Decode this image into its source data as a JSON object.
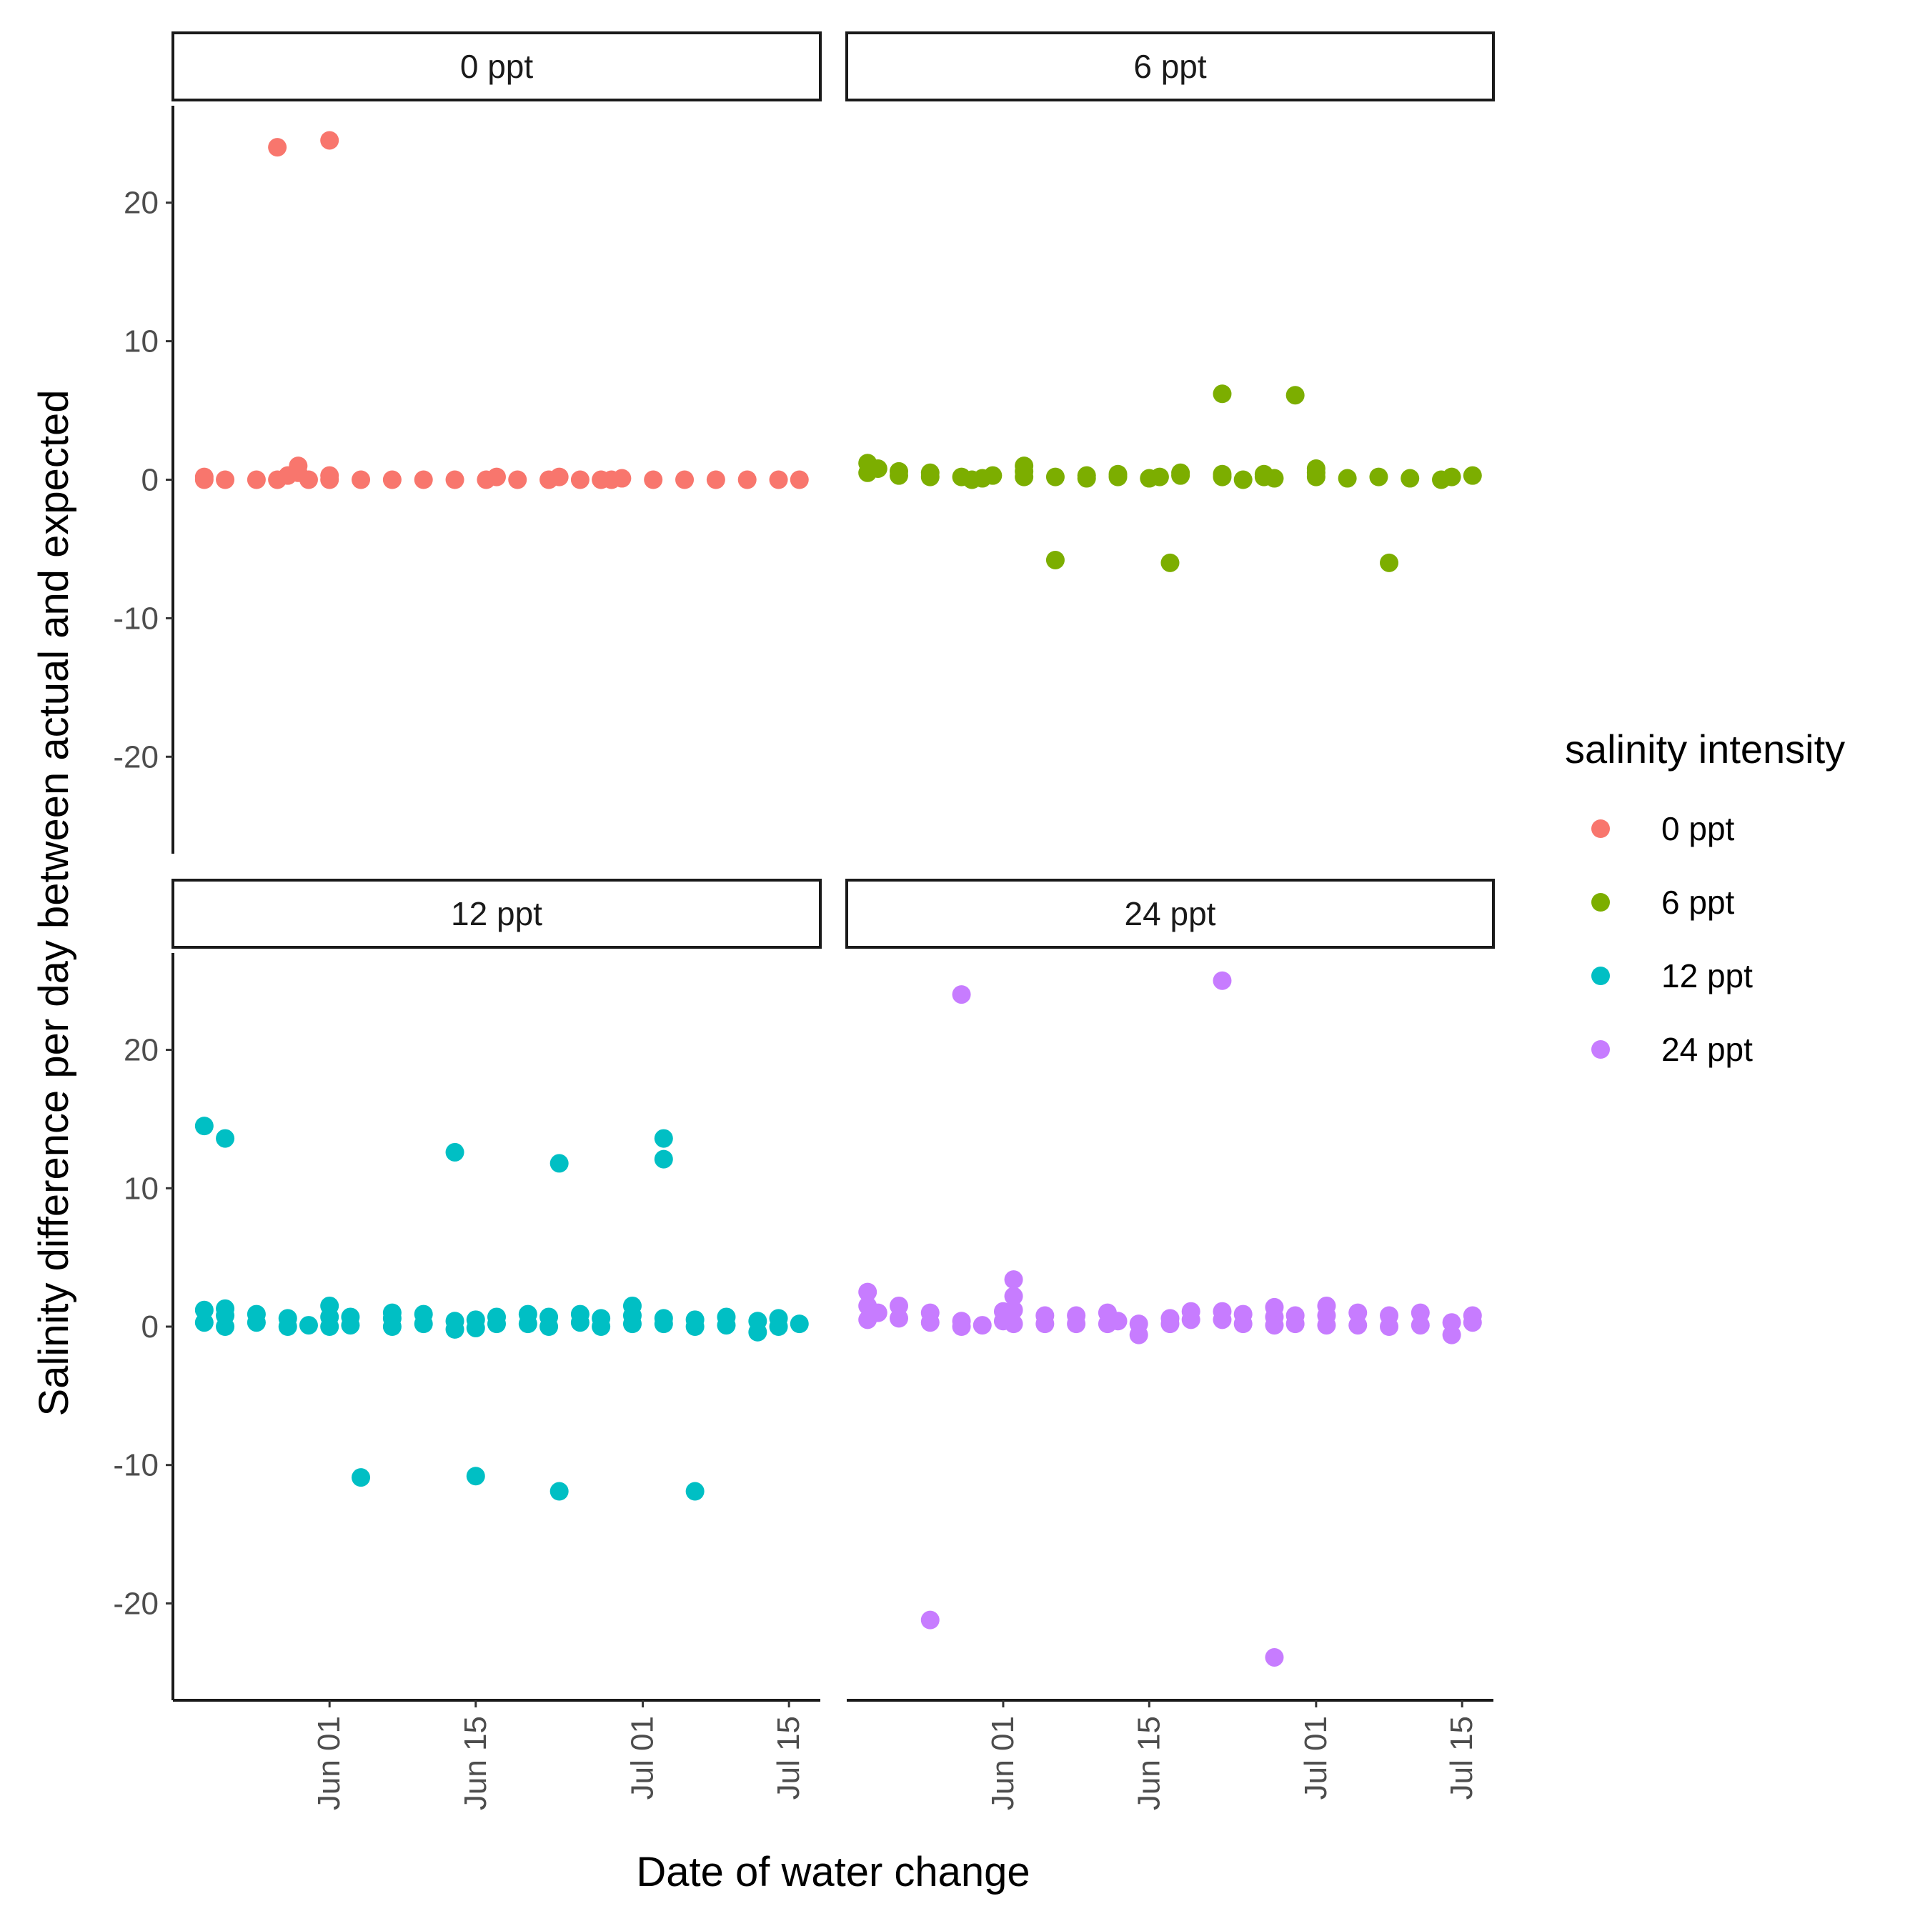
{
  "chart_data": {
    "type": "scatter",
    "facet_layout": "2x2",
    "shared_x_axis": true,
    "xlabel": "Date of water change",
    "ylabel": "Salinity difference per day between actual and expected",
    "x_unit": "day offset from May 15",
    "xlim": [
      2,
      64
    ],
    "x_ticks": [
      {
        "value": 17,
        "label": "Jun 01"
      },
      {
        "value": 31,
        "label": "Jun 15"
      },
      {
        "value": 47,
        "label": "Jul 01"
      },
      {
        "value": 61,
        "label": "Jul 15"
      }
    ],
    "ylim": [
      -27,
      27
    ],
    "y_ticks": [
      -20,
      -10,
      0,
      10,
      20
    ],
    "grid": false,
    "legend": {
      "title": "salinity intensity",
      "position": "right",
      "entries": [
        {
          "label": "0 ppt",
          "color": "#F8766D"
        },
        {
          "label": "6 ppt",
          "color": "#7CAE00"
        },
        {
          "label": "12 ppt",
          "color": "#00BFC4"
        },
        {
          "label": "24 ppt",
          "color": "#C77CFF"
        }
      ]
    },
    "series": [
      {
        "name": "0 ppt",
        "panel_title": "0 ppt",
        "color": "#F8766D",
        "points": [
          [
            5,
            0
          ],
          [
            5,
            0.2
          ],
          [
            7,
            0
          ],
          [
            10,
            0
          ],
          [
            12,
            0
          ],
          [
            13,
            0.3
          ],
          [
            14,
            0.5
          ],
          [
            14,
            1
          ],
          [
            15,
            0
          ],
          [
            17,
            0
          ],
          [
            17,
            0.3
          ],
          [
            20,
            0
          ],
          [
            23,
            0
          ],
          [
            26,
            0
          ],
          [
            29,
            0
          ],
          [
            32,
            0
          ],
          [
            33,
            0.2
          ],
          [
            35,
            0
          ],
          [
            38,
            0
          ],
          [
            39,
            0.2
          ],
          [
            41,
            0
          ],
          [
            43,
            0
          ],
          [
            44,
            0
          ],
          [
            45,
            0.1
          ],
          [
            48,
            0
          ],
          [
            51,
            0
          ],
          [
            54,
            0
          ],
          [
            57,
            0
          ],
          [
            60,
            0
          ],
          [
            62,
            0
          ],
          [
            12,
            24
          ],
          [
            17,
            24.5
          ]
        ]
      },
      {
        "name": "6 ppt",
        "panel_title": "6 ppt",
        "color": "#7CAE00",
        "points": [
          [
            4,
            0.5
          ],
          [
            4,
            1.2
          ],
          [
            5,
            0.8
          ],
          [
            7,
            0.3
          ],
          [
            7,
            0.6
          ],
          [
            10,
            0.2
          ],
          [
            10,
            0.5
          ],
          [
            13,
            0.2
          ],
          [
            14,
            0
          ],
          [
            15,
            0.1
          ],
          [
            16,
            0.3
          ],
          [
            19,
            0.2
          ],
          [
            19,
            0.6
          ],
          [
            19,
            1
          ],
          [
            22,
            0.2
          ],
          [
            25,
            0.1
          ],
          [
            25,
            0.3
          ],
          [
            28,
            0.2
          ],
          [
            28,
            0.4
          ],
          [
            31,
            0.1
          ],
          [
            32,
            0.2
          ],
          [
            34,
            0.3
          ],
          [
            34,
            0.5
          ],
          [
            38,
            0.2
          ],
          [
            38,
            0.4
          ],
          [
            40,
            0
          ],
          [
            42,
            0.2
          ],
          [
            42,
            0.4
          ],
          [
            43,
            0.1
          ],
          [
            47,
            0.2
          ],
          [
            47,
            0.5
          ],
          [
            47,
            0.8
          ],
          [
            50,
            0.1
          ],
          [
            53,
            0.2
          ],
          [
            56,
            0.1
          ],
          [
            59,
            0
          ],
          [
            60,
            0.2
          ],
          [
            62,
            0.3
          ],
          [
            38,
            6.2
          ],
          [
            45,
            6.1
          ],
          [
            22,
            -5.8
          ],
          [
            33,
            -6
          ],
          [
            54,
            -6
          ]
        ]
      },
      {
        "name": "12 ppt",
        "panel_title": "12 ppt",
        "color": "#00BFC4",
        "points": [
          [
            5,
            0.3
          ],
          [
            5,
            1.2
          ],
          [
            7,
            0
          ],
          [
            7,
            0.8
          ],
          [
            7,
            1.3
          ],
          [
            10,
            0.3
          ],
          [
            10,
            0.9
          ],
          [
            13,
            0
          ],
          [
            13,
            0.6
          ],
          [
            15,
            0.1
          ],
          [
            17,
            0
          ],
          [
            17,
            0.7
          ],
          [
            17,
            1.5
          ],
          [
            19,
            0.1
          ],
          [
            19,
            0.7
          ],
          [
            23,
            0
          ],
          [
            23,
            0.6
          ],
          [
            23,
            1
          ],
          [
            26,
            0.2
          ],
          [
            26,
            0.9
          ],
          [
            29,
            -0.2
          ],
          [
            29,
            0.4
          ],
          [
            31,
            -0.1
          ],
          [
            31,
            0.5
          ],
          [
            33,
            0.2
          ],
          [
            33,
            0.7
          ],
          [
            36,
            0.2
          ],
          [
            36,
            0.9
          ],
          [
            38,
            0
          ],
          [
            38,
            0.7
          ],
          [
            41,
            0.3
          ],
          [
            41,
            0.9
          ],
          [
            43,
            0
          ],
          [
            43,
            0.6
          ],
          [
            46,
            0.2
          ],
          [
            46,
            0.8
          ],
          [
            46,
            1.5
          ],
          [
            49,
            0.2
          ],
          [
            49,
            0.6
          ],
          [
            52,
            0
          ],
          [
            52,
            0.5
          ],
          [
            55,
            0.1
          ],
          [
            55,
            0.7
          ],
          [
            58,
            -0.4
          ],
          [
            58,
            0.4
          ],
          [
            60,
            0
          ],
          [
            60,
            0.6
          ],
          [
            62,
            0.2
          ],
          [
            5,
            14.5
          ],
          [
            7,
            13.6
          ],
          [
            29,
            12.6
          ],
          [
            39,
            11.8
          ],
          [
            49,
            13.6
          ],
          [
            49,
            12.1
          ],
          [
            20,
            -10.9
          ],
          [
            31,
            -10.8
          ],
          [
            39,
            -11.9
          ],
          [
            52,
            -11.9
          ]
        ]
      },
      {
        "name": "24 ppt",
        "panel_title": "24 ppt",
        "color": "#C77CFF",
        "points": [
          [
            4,
            0.5
          ],
          [
            4,
            1.5
          ],
          [
            4,
            2.5
          ],
          [
            5,
            1
          ],
          [
            7,
            0.6
          ],
          [
            7,
            1.5
          ],
          [
            10,
            0.3
          ],
          [
            10,
            1
          ],
          [
            13,
            0
          ],
          [
            13,
            0.4
          ],
          [
            15,
            0.1
          ],
          [
            17,
            0.4
          ],
          [
            17,
            1.1
          ],
          [
            18,
            0.2
          ],
          [
            18,
            1.2
          ],
          [
            18,
            2.2
          ],
          [
            18,
            3.4
          ],
          [
            21,
            0.2
          ],
          [
            21,
            0.8
          ],
          [
            24,
            0.2
          ],
          [
            24,
            0.8
          ],
          [
            27,
            0.2
          ],
          [
            27,
            1
          ],
          [
            28,
            0.4
          ],
          [
            30,
            -0.6
          ],
          [
            30,
            0.2
          ],
          [
            33,
            0.2
          ],
          [
            33,
            0.6
          ],
          [
            35,
            0.5
          ],
          [
            35,
            1.1
          ],
          [
            38,
            0.5
          ],
          [
            38,
            1.1
          ],
          [
            40,
            0.2
          ],
          [
            40,
            0.9
          ],
          [
            43,
            0.1
          ],
          [
            43,
            0.7
          ],
          [
            43,
            1.4
          ],
          [
            45,
            0.2
          ],
          [
            45,
            0.8
          ],
          [
            48,
            0.1
          ],
          [
            48,
            0.8
          ],
          [
            48,
            1.5
          ],
          [
            51,
            0.1
          ],
          [
            51,
            1
          ],
          [
            54,
            0
          ],
          [
            54,
            0.8
          ],
          [
            57,
            0.1
          ],
          [
            57,
            1
          ],
          [
            60,
            -0.6
          ],
          [
            60,
            0.3
          ],
          [
            62,
            0.3
          ],
          [
            62,
            0.8
          ],
          [
            13,
            24
          ],
          [
            38,
            25
          ],
          [
            10,
            -21.2
          ],
          [
            43,
            -23.9
          ]
        ]
      }
    ]
  }
}
